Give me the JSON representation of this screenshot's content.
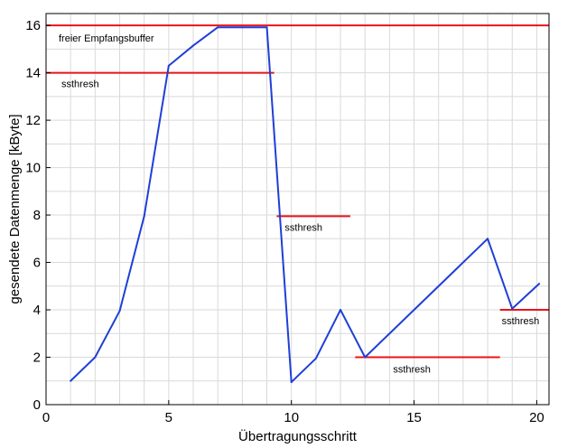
{
  "chart_data": {
    "type": "line",
    "title": "",
    "xlabel": "Übertragungsschritt",
    "ylabel": "gesendete Datenmenge [kByte]",
    "xlim": [
      0,
      20.5
    ],
    "ylim": [
      0,
      16.5
    ],
    "xticks": [
      0,
      5,
      10,
      15,
      20
    ],
    "yticks": [
      0,
      2,
      4,
      6,
      8,
      10,
      12,
      14,
      16
    ],
    "grid": true,
    "colors": {
      "series": "#1f3fd6",
      "threshold": "#e8141b",
      "grid": "#d9d9d9"
    },
    "series": [
      {
        "x": [
          1,
          2,
          3,
          4,
          5,
          6,
          7,
          8,
          9,
          10,
          11,
          12,
          13,
          18,
          19,
          20.1
        ],
        "y": [
          1,
          2,
          3.95,
          7.95,
          14.3,
          15.15,
          15.92,
          15.92,
          15.92,
          0.95,
          1.95,
          4,
          2,
          7,
          4.05,
          5.1
        ]
      }
    ],
    "thresholds": [
      {
        "x1": 0,
        "x2": 20.5,
        "y": 16,
        "label": "freier Empfangsbuffer"
      },
      {
        "x1": 0,
        "x2": 9.3,
        "y": 14,
        "label": "ssthresh"
      },
      {
        "x1": 9.4,
        "x2": 12.4,
        "y": 7.95,
        "label": "ssthresh"
      },
      {
        "x1": 12.6,
        "x2": 18.5,
        "y": 2,
        "label": "ssthresh"
      },
      {
        "x1": 18.5,
        "x2": 20.5,
        "y": 4,
        "label": "ssthresh"
      }
    ]
  }
}
